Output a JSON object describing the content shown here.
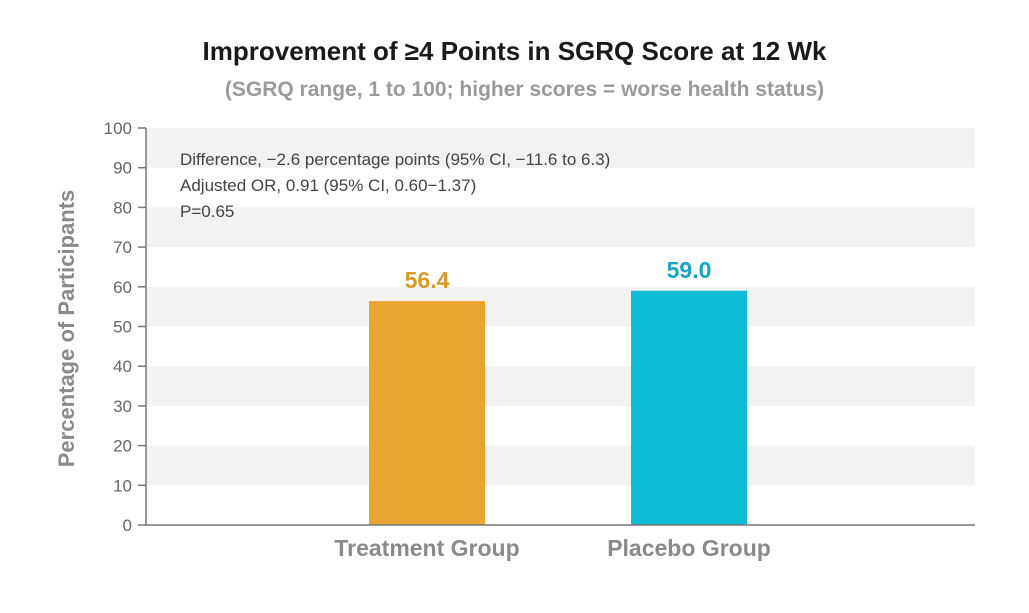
{
  "chart_data": {
    "type": "bar",
    "title": "Improvement of ≥4 Points in SGRQ Score at 12 Wk",
    "subtitle": "(SGRQ range, 1 to 100; higher scores = worse health status)",
    "ylabel": "Percentage of Participants",
    "xlabel": "",
    "ylim": [
      0,
      100
    ],
    "yticks": [
      0,
      10,
      20,
      30,
      40,
      50,
      60,
      70,
      80,
      90,
      100
    ],
    "categories": [
      "Treatment Group",
      "Placebo Group"
    ],
    "values": [
      56.4,
      59.0
    ],
    "value_labels": [
      "56.4",
      "59.0"
    ],
    "colors": [
      "#e8a630",
      "#0fbcd6"
    ],
    "grid": "alternating horizontal bands",
    "annotations": [
      "Difference, −2.6 percentage points (95% CI, −11.6 to 6.3)",
      "Adjusted OR, 0.91 (95% CI, 0.60−1.37)",
      "P=0.65"
    ]
  }
}
